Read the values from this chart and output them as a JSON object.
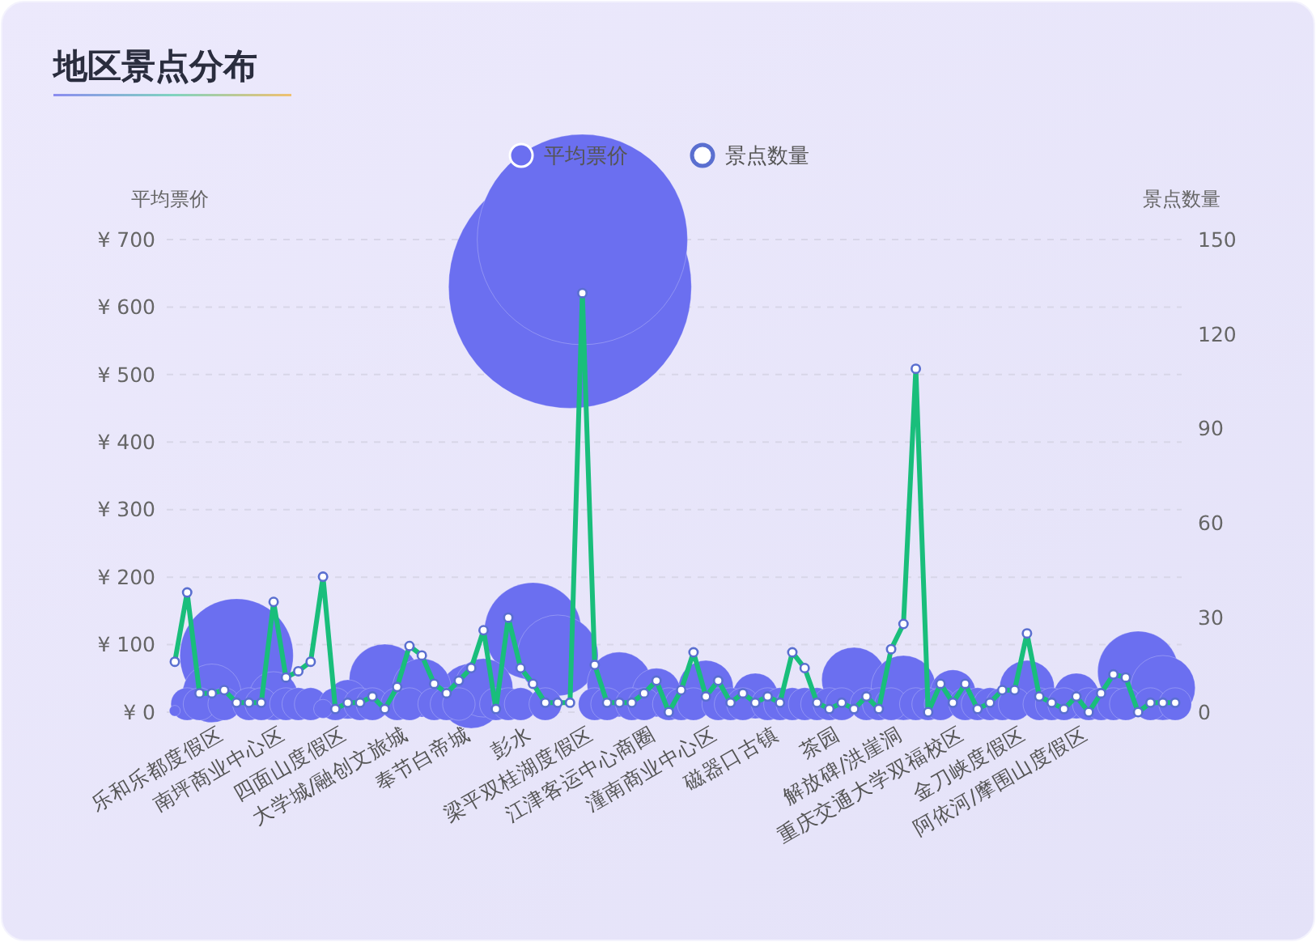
{
  "chart_data": {
    "type": "bubble",
    "title": "地区景点分布",
    "ylabel": "平均票价",
    "y2label": "景点数量",
    "categories": [
      null,
      null,
      null,
      null,
      "乐和乐都度假区",
      null,
      null,
      null,
      null,
      "南坪商业中心区",
      null,
      null,
      null,
      null,
      "四面山度假区",
      null,
      null,
      null,
      null,
      "大学城/融创文旅城",
      null,
      null,
      null,
      null,
      "奉节白帝城",
      null,
      null,
      null,
      null,
      "彭水",
      null,
      null,
      null,
      null,
      "梁平双桂湖度假区",
      null,
      null,
      null,
      null,
      "江津客运中心商圈",
      null,
      null,
      null,
      null,
      "潼南商业中心区",
      null,
      null,
      null,
      null,
      "磁器口古镇",
      null,
      null,
      null,
      null,
      "茶园",
      null,
      null,
      null,
      null,
      "解放碑/洪崖洞",
      null,
      null,
      null,
      null,
      "重庆交通大学双福校区",
      null,
      null,
      null,
      null,
      "金刀峡度假区",
      null,
      null,
      null,
      null,
      "阿依河/摩围山度假区",
      null,
      null,
      null,
      null,
      null,
      null,
      null
    ],
    "ylim": [
      0,
      700
    ],
    "yticks": [
      {
        "value": 0,
        "label": "¥ 0"
      },
      {
        "value": 100,
        "label": "¥ 100"
      },
      {
        "value": 200,
        "label": "¥ 200"
      },
      {
        "value": 300,
        "label": "¥ 300"
      },
      {
        "value": 400,
        "label": "¥ 400"
      },
      {
        "value": 500,
        "label": "¥ 500"
      },
      {
        "value": 600,
        "label": "¥ 600"
      },
      {
        "value": 700,
        "label": "¥ 700"
      }
    ],
    "y2lim": [
      0,
      150
    ],
    "y2ticks": [
      0,
      30,
      60,
      90,
      120,
      150
    ],
    "grid": "y",
    "legend": "top",
    "marker": "circle",
    "series": [
      {
        "name": "平均票价",
        "type": "bubble",
        "color": "#6b6ff0",
        "values": [
          2,
          12,
          12,
          28,
          12,
          84,
          12,
          12,
          24,
          12,
          12,
          12,
          5,
          12,
          19,
          12,
          12,
          48,
          12,
          12,
          36,
          12,
          12,
          12,
          24,
          36,
          12,
          12,
          12,
          120,
          12,
          84,
          630,
          700,
          12,
          12,
          41,
          12,
          12,
          29,
          12,
          12,
          12,
          36,
          12,
          12,
          12,
          24,
          12,
          12,
          12,
          12,
          12,
          12,
          12,
          48,
          12,
          12,
          12,
          36,
          12,
          12,
          12,
          29,
          12,
          12,
          12,
          12,
          12,
          36,
          12,
          12,
          12,
          24,
          12,
          12,
          12,
          12,
          60,
          12,
          36,
          12
        ],
        "sizes": [
          0.002,
          0.018,
          0.018,
          0.058,
          0.018,
          0.218,
          0.018,
          0.018,
          0.04,
          0.018,
          0.018,
          0.018,
          0.006,
          0.018,
          0.026,
          0.018,
          0.018,
          0.086,
          0.018,
          0.018,
          0.058,
          0.018,
          0.018,
          0.018,
          0.071,
          0.058,
          0.018,
          0.018,
          0.018,
          0.16,
          0.018,
          0.111,
          1,
          0.75,
          0.018,
          0.018,
          0.071,
          0.018,
          0.018,
          0.04,
          0.018,
          0.018,
          0.018,
          0.051,
          0.018,
          0.018,
          0.018,
          0.035,
          0.018,
          0.018,
          0.018,
          0.018,
          0.018,
          0.018,
          0.018,
          0.071,
          0.018,
          0.018,
          0.018,
          0.071,
          0.018,
          0.018,
          0.018,
          0.035,
          0.018,
          0.018,
          0.018,
          0.018,
          0.018,
          0.051,
          0.018,
          0.018,
          0.018,
          0.035,
          0.018,
          0.018,
          0.018,
          0.018,
          0.111,
          0.018,
          0.071,
          0.018
        ]
      },
      {
        "name": "景点数量",
        "type": "line",
        "axis": "y2",
        "color": "#19be7b",
        "values": [
          16,
          38,
          6,
          6,
          7,
          3,
          3,
          3,
          35,
          11,
          13,
          16,
          43,
          1,
          3,
          3,
          5,
          1,
          8,
          21,
          18,
          9,
          6,
          10,
          14,
          26,
          1,
          30,
          14,
          9,
          3,
          3,
          3,
          133,
          15,
          3,
          3,
          3,
          6,
          10,
          0,
          7,
          19,
          5,
          10,
          3,
          6,
          3,
          5,
          3,
          19,
          14,
          3,
          1,
          3,
          1,
          5,
          1,
          20,
          28,
          109,
          0,
          9,
          3,
          9,
          1,
          3,
          7,
          7,
          25,
          5,
          3,
          1,
          5,
          0,
          6,
          12,
          11,
          0,
          3,
          3,
          3
        ]
      }
    ]
  }
}
